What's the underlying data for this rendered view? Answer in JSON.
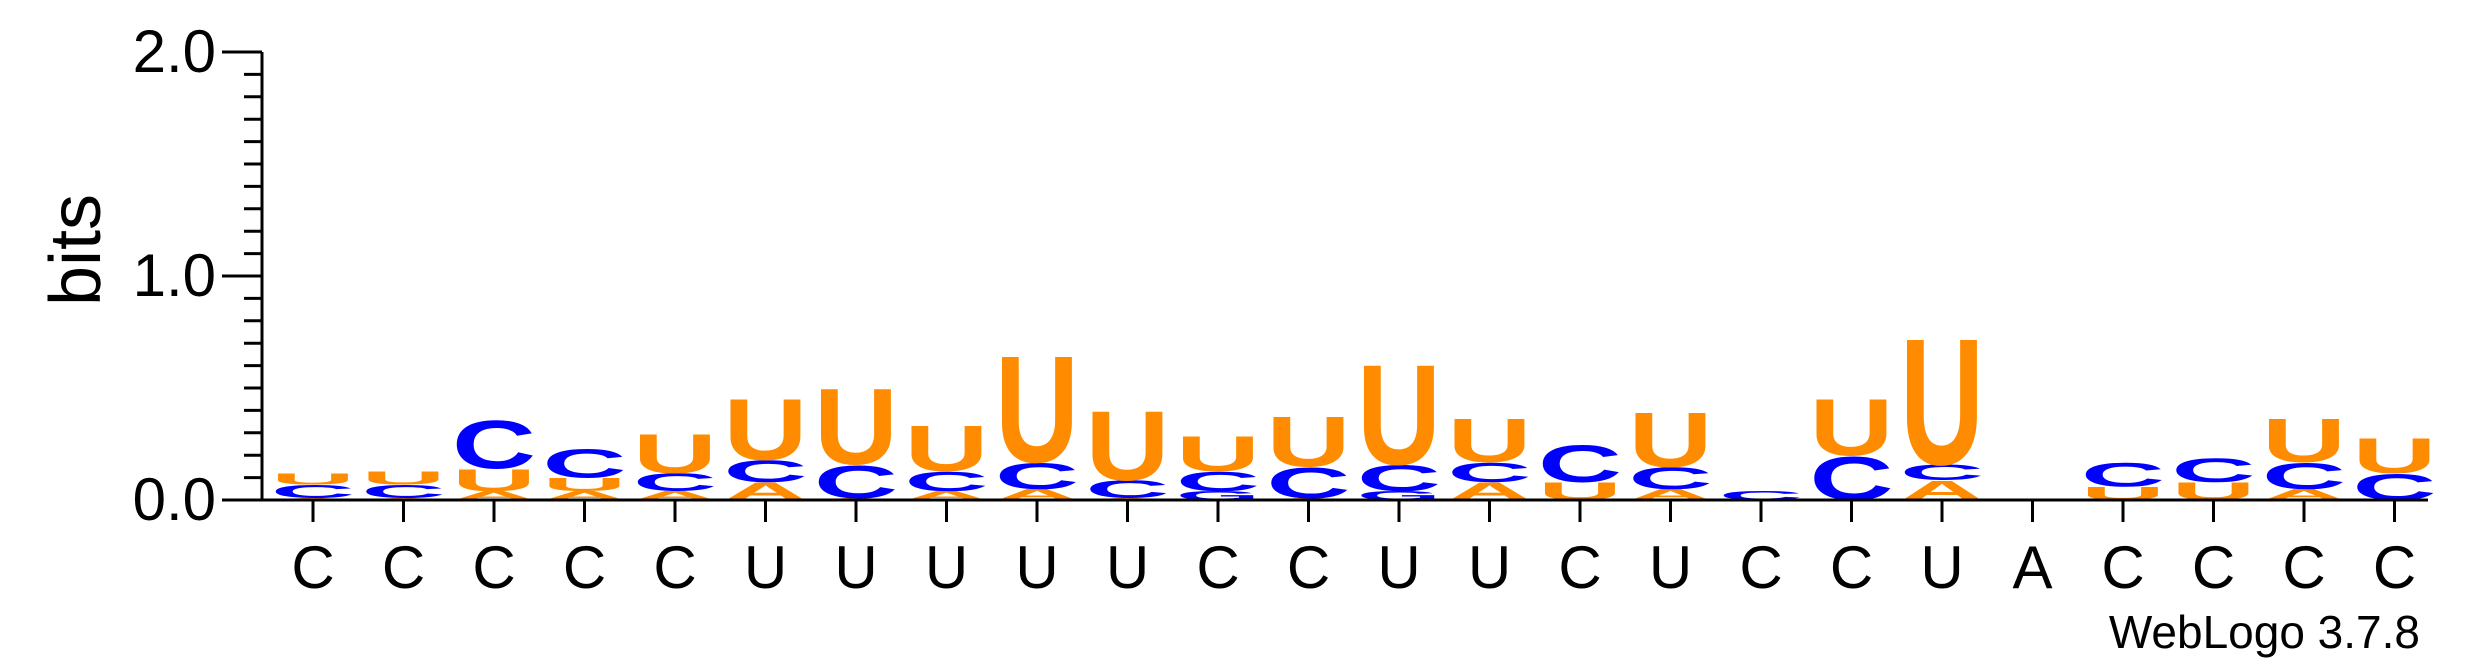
{
  "chart_data": {
    "type": "sequence-logo",
    "ylabel": "bits",
    "ylim": [
      0,
      2.0
    ],
    "yticks": [
      {
        "value": 0.0,
        "label": "0.0"
      },
      {
        "value": 1.0,
        "label": "1.0"
      },
      {
        "value": 2.0,
        "label": "2.0"
      }
    ],
    "xlabels": [
      "C",
      "C",
      "C",
      "C",
      "C",
      "U",
      "U",
      "U",
      "U",
      "U",
      "C",
      "C",
      "U",
      "U",
      "C",
      "U",
      "C",
      "C",
      "U",
      "A",
      "C",
      "C",
      "C",
      "C"
    ],
    "credit": "WebLogo 3.7.8",
    "colors": {
      "C": "#0000ff",
      "U": "#ff8c00",
      "A": "#ff8c00",
      "G": "#0000ff"
    },
    "positions": [
      {
        "stack": [
          {
            "letter": "A",
            "bits": 0.01
          },
          {
            "letter": "C",
            "bits": 0.06
          },
          {
            "letter": "U",
            "bits": 0.05
          }
        ]
      },
      {
        "stack": [
          {
            "letter": "A",
            "bits": 0.01
          },
          {
            "letter": "C",
            "bits": 0.06
          },
          {
            "letter": "U",
            "bits": 0.06
          }
        ]
      },
      {
        "stack": [
          {
            "letter": "A",
            "bits": 0.04
          },
          {
            "letter": "U",
            "bits": 0.1
          },
          {
            "letter": "C",
            "bits": 0.22
          }
        ]
      },
      {
        "stack": [
          {
            "letter": "A",
            "bits": 0.04
          },
          {
            "letter": "U",
            "bits": 0.06
          },
          {
            "letter": "C",
            "bits": 0.13
          }
        ]
      },
      {
        "stack": [
          {
            "letter": "A",
            "bits": 0.04
          },
          {
            "letter": "C",
            "bits": 0.08
          },
          {
            "letter": "U",
            "bits": 0.18
          }
        ]
      },
      {
        "stack": [
          {
            "letter": "A",
            "bits": 0.08
          },
          {
            "letter": "C",
            "bits": 0.1
          },
          {
            "letter": "U",
            "bits": 0.28
          }
        ]
      },
      {
        "stack": [
          {
            "letter": "A",
            "bits": 0.01
          },
          {
            "letter": "C",
            "bits": 0.15
          },
          {
            "letter": "U",
            "bits": 0.35
          }
        ]
      },
      {
        "stack": [
          {
            "letter": "A",
            "bits": 0.04
          },
          {
            "letter": "C",
            "bits": 0.09
          },
          {
            "letter": "U",
            "bits": 0.21
          }
        ]
      },
      {
        "stack": [
          {
            "letter": "A",
            "bits": 0.05
          },
          {
            "letter": "C",
            "bits": 0.12
          },
          {
            "letter": "U",
            "bits": 0.49
          }
        ]
      },
      {
        "stack": [
          {
            "letter": "A",
            "bits": 0.01
          },
          {
            "letter": "C",
            "bits": 0.08
          },
          {
            "letter": "U",
            "bits": 0.32
          }
        ]
      },
      {
        "stack": [
          {
            "letter": "G",
            "bits": 0.04
          },
          {
            "letter": "C",
            "bits": 0.09
          },
          {
            "letter": "U",
            "bits": 0.16
          }
        ]
      },
      {
        "stack": [
          {
            "letter": "A",
            "bits": 0.01
          },
          {
            "letter": "C",
            "bits": 0.14
          },
          {
            "letter": "U",
            "bits": 0.23
          }
        ]
      },
      {
        "stack": [
          {
            "letter": "G",
            "bits": 0.04
          },
          {
            "letter": "C",
            "bits": 0.12
          },
          {
            "letter": "U",
            "bits": 0.46
          }
        ]
      },
      {
        "stack": [
          {
            "letter": "A",
            "bits": 0.08
          },
          {
            "letter": "C",
            "bits": 0.09
          },
          {
            "letter": "U",
            "bits": 0.2
          }
        ]
      },
      {
        "stack": [
          {
            "letter": "U",
            "bits": 0.08
          },
          {
            "letter": "C",
            "bits": 0.17
          }
        ]
      },
      {
        "stack": [
          {
            "letter": "A",
            "bits": 0.05
          },
          {
            "letter": "C",
            "bits": 0.1
          },
          {
            "letter": "U",
            "bits": 0.25
          }
        ]
      },
      {
        "stack": [
          {
            "letter": "C",
            "bits": 0.04
          }
        ]
      },
      {
        "stack": [
          {
            "letter": "C",
            "bits": 0.2
          },
          {
            "letter": "U",
            "bits": 0.26
          }
        ]
      },
      {
        "stack": [
          {
            "letter": "A",
            "bits": 0.09
          },
          {
            "letter": "C",
            "bits": 0.07
          },
          {
            "letter": "U",
            "bits": 0.58
          }
        ]
      },
      {
        "stack": []
      },
      {
        "stack": [
          {
            "letter": "U",
            "bits": 0.06
          },
          {
            "letter": "C",
            "bits": 0.11
          }
        ]
      },
      {
        "stack": [
          {
            "letter": "U",
            "bits": 0.08
          },
          {
            "letter": "C",
            "bits": 0.11
          }
        ]
      },
      {
        "stack": [
          {
            "letter": "A",
            "bits": 0.05
          },
          {
            "letter": "C",
            "bits": 0.12
          },
          {
            "letter": "U",
            "bits": 0.2
          }
        ]
      },
      {
        "stack": [
          {
            "letter": "C",
            "bits": 0.12
          },
          {
            "letter": "U",
            "bits": 0.16
          }
        ]
      }
    ]
  }
}
